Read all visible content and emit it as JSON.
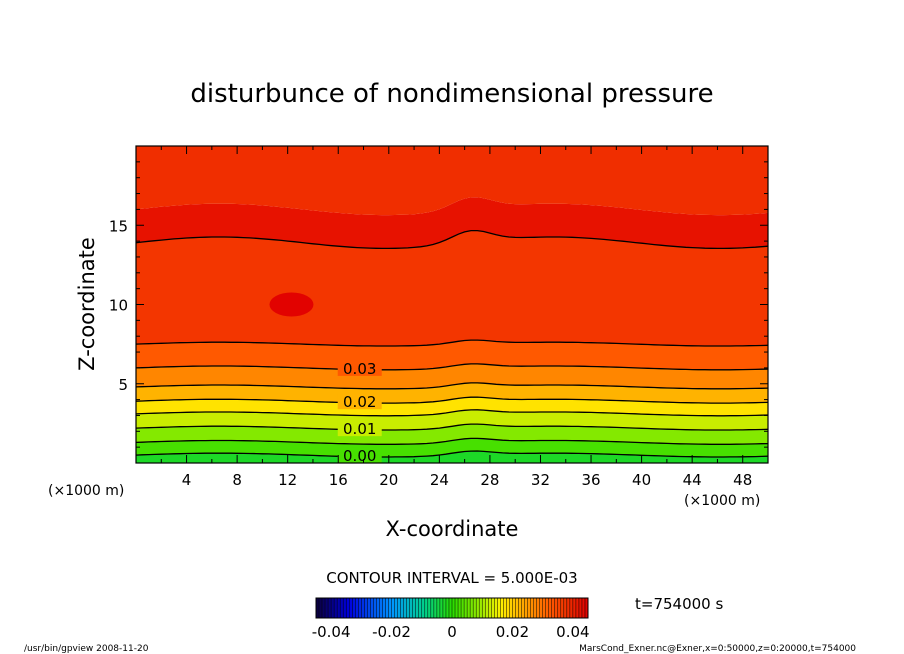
{
  "chart_data": {
    "type": "contour",
    "title": "disturbunce of nondimensional pressure",
    "xlabel": "X-coordinate",
    "ylabel": "Z-coordinate",
    "x_unit_label": "(×1000 m)",
    "xlim": [
      0,
      50
    ],
    "ylim": [
      0,
      20
    ],
    "x_ticks": [
      4,
      8,
      12,
      16,
      20,
      24,
      28,
      32,
      36,
      40,
      44,
      48
    ],
    "y_ticks": [
      5,
      10,
      15
    ],
    "contour_interval_text": "CONTOUR INTERVAL = 5.000E-03",
    "contour_labels": [
      {
        "text": "0.00",
        "value": 0.0,
        "z": 0.5
      },
      {
        "text": "0.01",
        "value": 0.01,
        "z": 2.2
      },
      {
        "text": "0.02",
        "value": 0.02,
        "z": 3.9
      },
      {
        "text": "0.03",
        "value": 0.03,
        "z": 6.0
      }
    ],
    "contour_levels": [
      {
        "value": 0.0,
        "z": 0.5
      },
      {
        "value": 0.005,
        "z": 1.3
      },
      {
        "value": 0.01,
        "z": 2.2
      },
      {
        "value": 0.015,
        "z": 3.1
      },
      {
        "value": 0.02,
        "z": 3.9
      },
      {
        "value": 0.025,
        "z": 4.8
      },
      {
        "value": 0.03,
        "z": 6.0
      },
      {
        "value": 0.035,
        "z": 7.5
      },
      {
        "value": 0.04,
        "z": 13.9
      }
    ],
    "colorbar": {
      "range": [
        -0.045,
        0.045
      ],
      "tick_labels": [
        "-0.04",
        "-0.02",
        "0",
        "0.02",
        "0.04"
      ],
      "tick_values": [
        -0.04,
        -0.02,
        0,
        0.02,
        0.04
      ]
    },
    "time_label": "t=754000 s"
  },
  "footer": {
    "left": "/usr/bin/gpview   2008-11-20",
    "right": "MarsCond_Exner.nc@Exner,x=0:50000,z=0:20000,t=754000"
  }
}
